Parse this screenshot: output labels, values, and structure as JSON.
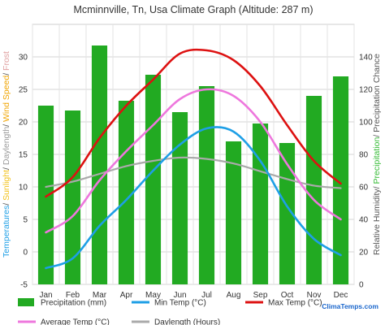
{
  "chart_data": {
    "type": "bar",
    "title": "Mcminnville, Tn, Usa Climate Graph (Altitude: 287 m)",
    "categories": [
      "Jan",
      "Feb",
      "Mar",
      "Apr",
      "May",
      "Jun",
      "Jul",
      "Aug",
      "Sep",
      "Oct",
      "Nov",
      "Dec"
    ],
    "left_axis": {
      "label_parts": [
        {
          "text": "Temperatures",
          "color": "#1e9fe6"
        },
        {
          "text": "/ ",
          "color": "#555555"
        },
        {
          "text": "Sunlight",
          "color": "#f2c21a"
        },
        {
          "text": "/ ",
          "color": "#555555"
        },
        {
          "text": "Daylength",
          "color": "#9a9a9a"
        },
        {
          "text": "/ ",
          "color": "#555555"
        },
        {
          "text": "Wind Speed",
          "color": "#f0a400"
        },
        {
          "text": "/ ",
          "color": "#555555"
        },
        {
          "text": "Frost",
          "color": "#e0a0a0"
        }
      ],
      "ylim": [
        -5,
        35
      ],
      "ticks": [
        "-5",
        "0",
        "5",
        "10",
        "15",
        "20",
        "25",
        "30"
      ]
    },
    "right_axis": {
      "label_parts": [
        {
          "text": "Relative Humidity/ ",
          "color": "#555555"
        },
        {
          "text": "Precipitation",
          "color": "#33bb33"
        },
        {
          "text": "/ Precipitation Chance",
          "color": "#555555"
        }
      ],
      "ylim": [
        0,
        160
      ],
      "ticks": [
        "0",
        "20",
        "40",
        "60",
        "80",
        "100",
        "120",
        "140"
      ]
    },
    "series": [
      {
        "name": "Precipitation (mm)",
        "kind": "bar",
        "axis": "right",
        "color": "#22aa22",
        "values": [
          110,
          107,
          147,
          113,
          129,
          106,
          122,
          88,
          99,
          87,
          116,
          128
        ]
      },
      {
        "name": "Min Temp (°C)",
        "kind": "line",
        "axis": "left",
        "color": "#1e9fe6",
        "values": [
          -2.5,
          -1,
          4,
          8,
          12.5,
          16.5,
          19,
          18.5,
          14,
          7,
          2,
          -0.5
        ]
      },
      {
        "name": "Max Temp (°C)",
        "kind": "line",
        "axis": "left",
        "color": "#dd1111",
        "values": [
          8.5,
          11.5,
          17.5,
          22.5,
          26.5,
          30.5,
          31,
          29.5,
          25.5,
          19.5,
          14,
          10.5
        ]
      },
      {
        "name": "Average Temp (°C)",
        "kind": "line",
        "axis": "left",
        "color": "#ee77dd",
        "values": [
          3,
          5.5,
          11,
          15.5,
          19.5,
          23.5,
          25,
          24,
          20,
          13.5,
          8,
          5
        ]
      },
      {
        "name": "Daylength (Hours)",
        "kind": "line",
        "axis": "left",
        "color": "#aaaaaa",
        "values": [
          10,
          10.8,
          12,
          13.2,
          14,
          14.5,
          14.3,
          13.6,
          12.4,
          11.2,
          10.2,
          9.8
        ]
      }
    ],
    "grid": true,
    "legend_position": "bottom"
  },
  "brand": "ClimaTemps.com"
}
